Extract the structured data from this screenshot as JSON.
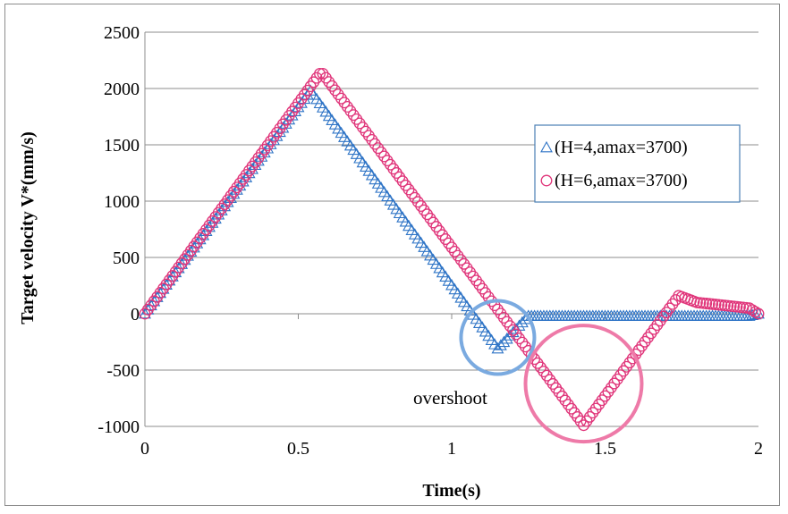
{
  "chart_data": {
    "type": "scatter",
    "xlabel": "Time(s)",
    "ylabel": "Target velocity V*(mm/s)",
    "xlim": [
      0,
      2
    ],
    "ylim": [
      -1000,
      2500
    ],
    "x_ticks": [
      "0",
      "0.5",
      "1",
      "1.5",
      "2"
    ],
    "y_ticks": [
      "2500",
      "2000",
      "1500",
      "1000",
      "500",
      "0",
      "-500",
      "-1000"
    ],
    "grid": "horizontal",
    "legend_position": "right",
    "annotation": "overshoot",
    "series": [
      {
        "name": "(H=4,amax=3700)",
        "marker": "triangle",
        "color": "#2e74c6",
        "keypoints": [
          [
            0,
            0
          ],
          [
            0.54,
            1980
          ],
          [
            1.15,
            -310
          ],
          [
            1.25,
            -20
          ],
          [
            1.97,
            -20
          ],
          [
            2.0,
            0
          ]
        ]
      },
      {
        "name": "(H=6,amax=3700)",
        "marker": "circle",
        "color": "#e0357a",
        "keypoints": [
          [
            0,
            0
          ],
          [
            0.575,
            2150
          ],
          [
            1.43,
            -990
          ],
          [
            1.74,
            160
          ],
          [
            1.8,
            100
          ],
          [
            1.97,
            50
          ],
          [
            2.0,
            0
          ]
        ]
      }
    ],
    "highlight_circles": [
      {
        "color": "#7aaae0",
        "center": [
          1.15,
          -210
        ],
        "radius_units": "small"
      },
      {
        "color": "#ee7aa8",
        "center": [
          1.43,
          -620
        ],
        "radius_units": "large"
      }
    ]
  }
}
